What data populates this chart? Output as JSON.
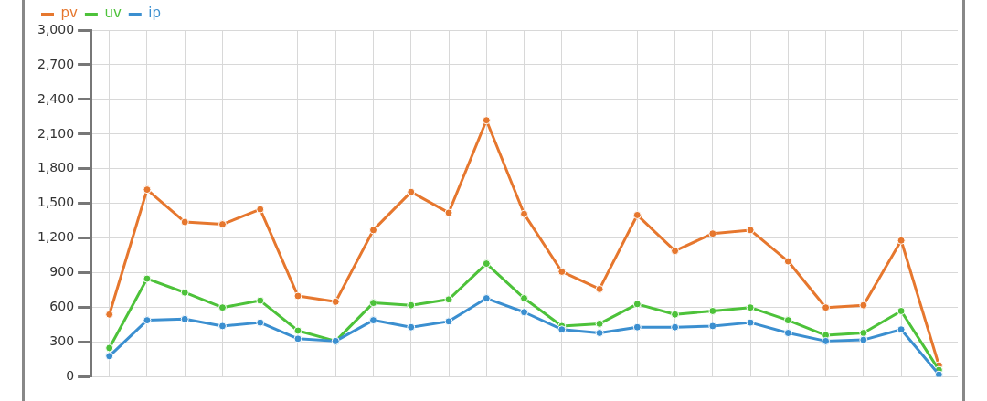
{
  "chart_data": {
    "type": "line",
    "categories": [
      null,
      null,
      null,
      null,
      null,
      null,
      null,
      null,
      null,
      null,
      null,
      null,
      null,
      null,
      null,
      null,
      null,
      null,
      null,
      null,
      null,
      null,
      null
    ],
    "series": [
      {
        "name": "pv",
        "color": "#e6772e",
        "values": [
          540,
          1620,
          1340,
          1320,
          1450,
          700,
          650,
          1270,
          1600,
          1420,
          2220,
          1410,
          910,
          760,
          1400,
          1090,
          1240,
          1270,
          1000,
          600,
          620,
          1180,
          100
        ]
      },
      {
        "name": "uv",
        "color": "#4dc23a",
        "values": [
          250,
          850,
          730,
          600,
          660,
          400,
          310,
          640,
          620,
          670,
          980,
          680,
          440,
          460,
          630,
          540,
          570,
          600,
          490,
          360,
          380,
          570,
          60
        ]
      },
      {
        "name": "ip",
        "color": "#3b8fd0",
        "values": [
          180,
          490,
          500,
          440,
          470,
          330,
          310,
          490,
          430,
          480,
          680,
          560,
          410,
          380,
          430,
          430,
          440,
          470,
          380,
          310,
          320,
          410,
          20
        ]
      }
    ],
    "ylim": [
      0,
      3000
    ],
    "yticks": [
      0,
      300,
      600,
      900,
      {
        "value": 1200,
        "label": "1,200"
      },
      {
        "value": 1500,
        "label": "1,500"
      },
      {
        "value": 1800,
        "label": "1,800"
      },
      {
        "value": 2100,
        "label": "2,100"
      },
      {
        "value": 2400,
        "label": "2,400"
      },
      {
        "value": 2700,
        "label": "2,700"
      },
      {
        "value": 3000,
        "label": "3,000"
      }
    ],
    "grid": true,
    "legend": "top left",
    "marker": "circle",
    "line_style": "solid"
  }
}
